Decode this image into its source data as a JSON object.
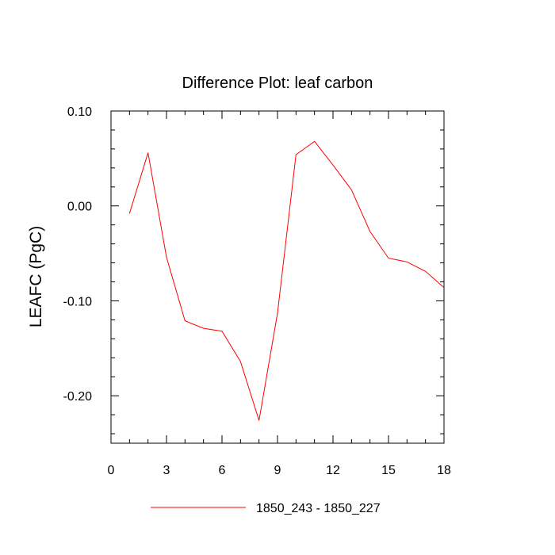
{
  "chart_data": {
    "type": "line",
    "title": "Difference Plot: leaf carbon",
    "xlabel": "",
    "ylabel": "LEAFC  (PgC)",
    "xlim": [
      0,
      18
    ],
    "ylim": [
      -0.25,
      0.1
    ],
    "xticks": [
      0,
      3,
      6,
      9,
      12,
      15,
      18
    ],
    "xtick_labels": [
      "0",
      "3",
      "6",
      "9",
      "12",
      "15",
      "18"
    ],
    "yticks": [
      0.1,
      0.0,
      -0.1,
      -0.2
    ],
    "ytick_labels": [
      "0.10",
      "0.00",
      "-0.10",
      "-0.20"
    ],
    "grid": false,
    "legend_position": "bottom",
    "series": [
      {
        "name": "1850_243 - 1850_227",
        "color": "#ff0000",
        "x": [
          1,
          2,
          3,
          4,
          5,
          6,
          7,
          8,
          9,
          10,
          11,
          12,
          13,
          14,
          15,
          16,
          17,
          18
        ],
        "values": [
          -0.008,
          0.056,
          -0.054,
          -0.121,
          -0.129,
          -0.132,
          -0.164,
          -0.226,
          -0.113,
          0.054,
          0.068,
          0.043,
          0.017,
          -0.027,
          -0.055,
          -0.059,
          -0.069,
          -0.086
        ]
      }
    ]
  }
}
